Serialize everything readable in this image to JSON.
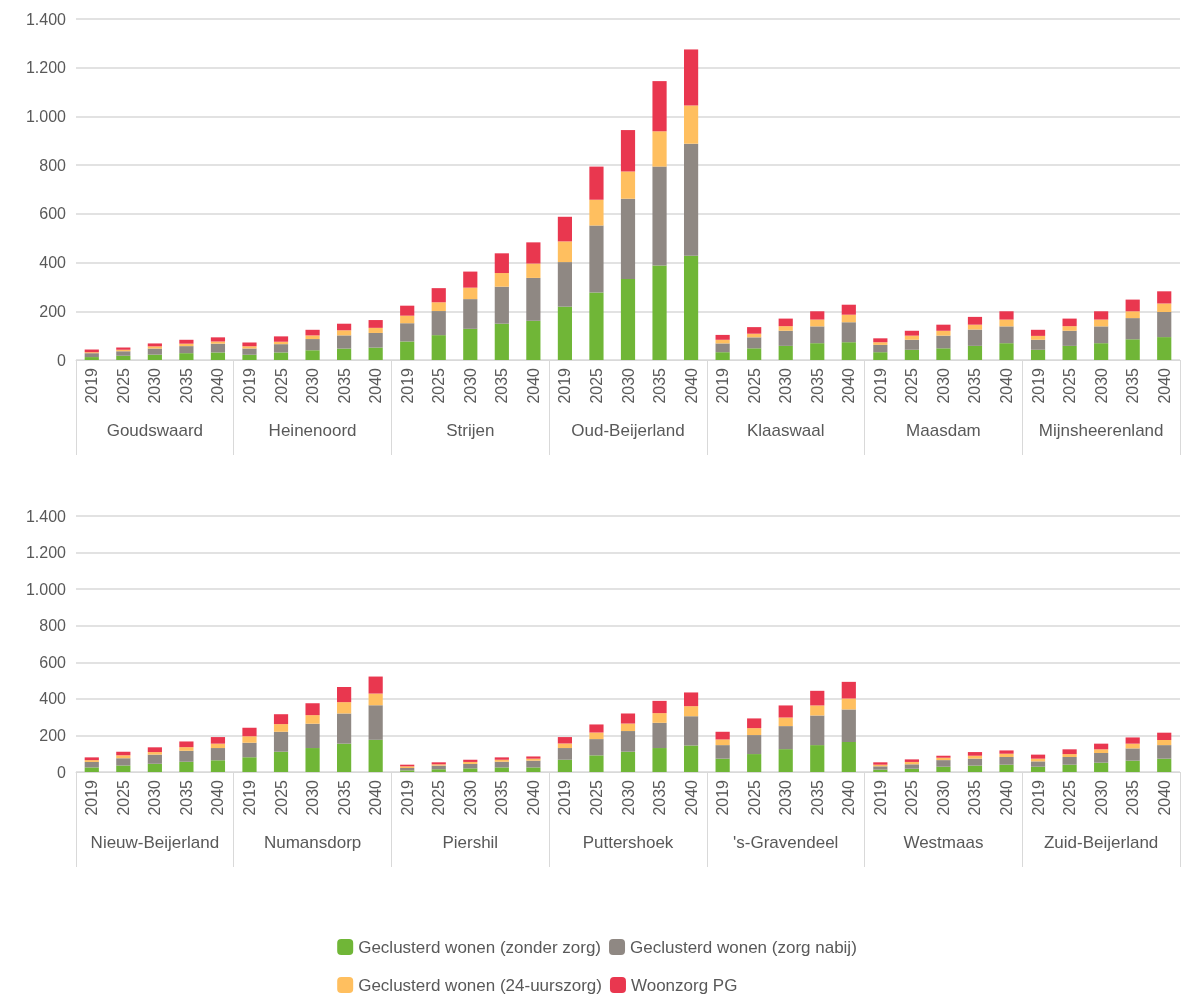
{
  "chart_data": [
    {
      "type": "bar",
      "stacked": true,
      "grid": "y",
      "legend": false,
      "categories": [
        "2019",
        "2025",
        "2030",
        "2035",
        "2040",
        "2019",
        "2025",
        "2030",
        "2035",
        "2040",
        "2019",
        "2025",
        "2030",
        "2035",
        "2040",
        "2019",
        "2025",
        "2030",
        "2035",
        "2040",
        "2019",
        "2025",
        "2030",
        "2035",
        "2040",
        "2019",
        "2025",
        "2030",
        "2035",
        "2040",
        "2019",
        "2025",
        "2030",
        "2035",
        "2040"
      ],
      "annotations": [
        "Goudswaard",
        "Heinenoord",
        "Strijen",
        "Oud-Beijerland",
        "Klaaswaal",
        "Maasdam",
        "Mijnsheerenland"
      ],
      "ylim": [
        0,
        1400
      ],
      "yticks": [
        0,
        200,
        400,
        600,
        800,
        {
          "value": 1000,
          "label": "1.000"
        },
        {
          "value": 1200,
          "label": "1.200"
        },
        {
          "value": 1400,
          "label": "1.400"
        }
      ],
      "series": [
        {
          "color": "#70b637",
          "values": [
            12,
            17,
            22,
            28,
            31,
            22,
            31,
            40,
            47,
            51,
            76,
            102,
            128,
            149,
            161,
            219,
            277,
            333,
            388,
            428,
            32,
            48,
            58,
            69,
            73,
            32,
            42,
            48,
            58,
            69,
            42,
            58,
            69,
            85,
            94
          ]
        },
        {
          "color": "#8f8883",
          "values": [
            16,
            19,
            25,
            29,
            36,
            25,
            34,
            46,
            54,
            60,
            75,
            99,
            122,
            152,
            176,
            183,
            275,
            329,
            406,
            460,
            36,
            45,
            62,
            69,
            82,
            30,
            41,
            52,
            67,
            69,
            41,
            62,
            69,
            87,
            103
          ]
        },
        {
          "color": "#ffbf5f",
          "values": [
            4,
            6,
            9,
            10,
            9,
            9,
            10,
            15,
            21,
            21,
            31,
            36,
            47,
            56,
            59,
            85,
            106,
            112,
            145,
            157,
            15,
            15,
            19,
            28,
            31,
            11,
            17,
            20,
            20,
            28,
            16,
            19,
            28,
            28,
            35
          ]
        },
        {
          "color": "#e9374f",
          "values": [
            11,
            9,
            12,
            16,
            17,
            16,
            22,
            23,
            27,
            32,
            41,
            58,
            66,
            81,
            87,
            101,
            136,
            170,
            206,
            230,
            20,
            27,
            31,
            34,
            41,
            16,
            20,
            25,
            32,
            34,
            25,
            31,
            34,
            48,
            50
          ]
        }
      ]
    },
    {
      "type": "bar",
      "stacked": true,
      "grid": "y",
      "legend": "bottom",
      "categories": [
        "2019",
        "2025",
        "2030",
        "2035",
        "2040",
        "2019",
        "2025",
        "2030",
        "2035",
        "2040",
        "2019",
        "2025",
        "2030",
        "2035",
        "2040",
        "2019",
        "2025",
        "2030",
        "2035",
        "2040",
        "2019",
        "2025",
        "2030",
        "2035",
        "2040",
        "2019",
        "2025",
        "2030",
        "2035",
        "2040",
        "2019",
        "2025",
        "2030",
        "2035",
        "2040"
      ],
      "annotations": [
        "Nieuw-Beijerland",
        "Numansdorp",
        "Piershil",
        "Puttershoek",
        "'s-Gravendeel",
        "Westmaas",
        "Zuid-Beijerland"
      ],
      "ylim": [
        0,
        1400
      ],
      "yticks": [
        0,
        200,
        400,
        600,
        800,
        {
          "value": 1000,
          "label": "1.000"
        },
        {
          "value": 1200,
          "label": "1.200"
        },
        {
          "value": 1400,
          "label": "1.400"
        }
      ],
      "series": [
        {
          "name": "Geclusterd wonen (zonder zorg)",
          "color": "#70b637",
          "values": [
            25,
            36,
            45,
            56,
            64,
            80,
            111,
            131,
            155,
            176,
            9,
            15,
            20,
            25,
            25,
            67,
            91,
            111,
            131,
            145,
            73,
            98,
            125,
            147,
            164,
            13,
            18,
            29,
            35,
            40,
            29,
            40,
            51,
            62,
            73
          ]
        },
        {
          "name": "Geclusterd wonen (zorg nabij)",
          "color": "#8f8883",
          "values": [
            30,
            39,
            50,
            60,
            67,
            80,
            109,
            133,
            165,
            189,
            13,
            20,
            24,
            31,
            37,
            64,
            89,
            113,
            138,
            160,
            74,
            104,
            126,
            162,
            178,
            18,
            24,
            36,
            38,
            42,
            29,
            42,
            53,
            67,
            74
          ]
        },
        {
          "name": "Geclusterd wonen (24-uurszorg)",
          "color": "#ffbf5f",
          "values": [
            10,
            16,
            14,
            20,
            24,
            36,
            42,
            47,
            62,
            64,
            9,
            7,
            11,
            11,
            11,
            25,
            36,
            41,
            53,
            55,
            31,
            38,
            47,
            55,
            60,
            9,
            13,
            13,
            16,
            18,
            15,
            16,
            20,
            26,
            28
          ]
        },
        {
          "name": "Woonzorg PG",
          "color": "#e9374f",
          "values": [
            15,
            20,
            26,
            31,
            36,
            46,
            54,
            65,
            83,
            93,
            9,
            11,
            12,
            13,
            12,
            35,
            44,
            55,
            67,
            75,
            42,
            53,
            66,
            80,
            91,
            13,
            14,
            11,
            20,
            18,
            22,
            26,
            31,
            34,
            40
          ]
        }
      ]
    }
  ]
}
